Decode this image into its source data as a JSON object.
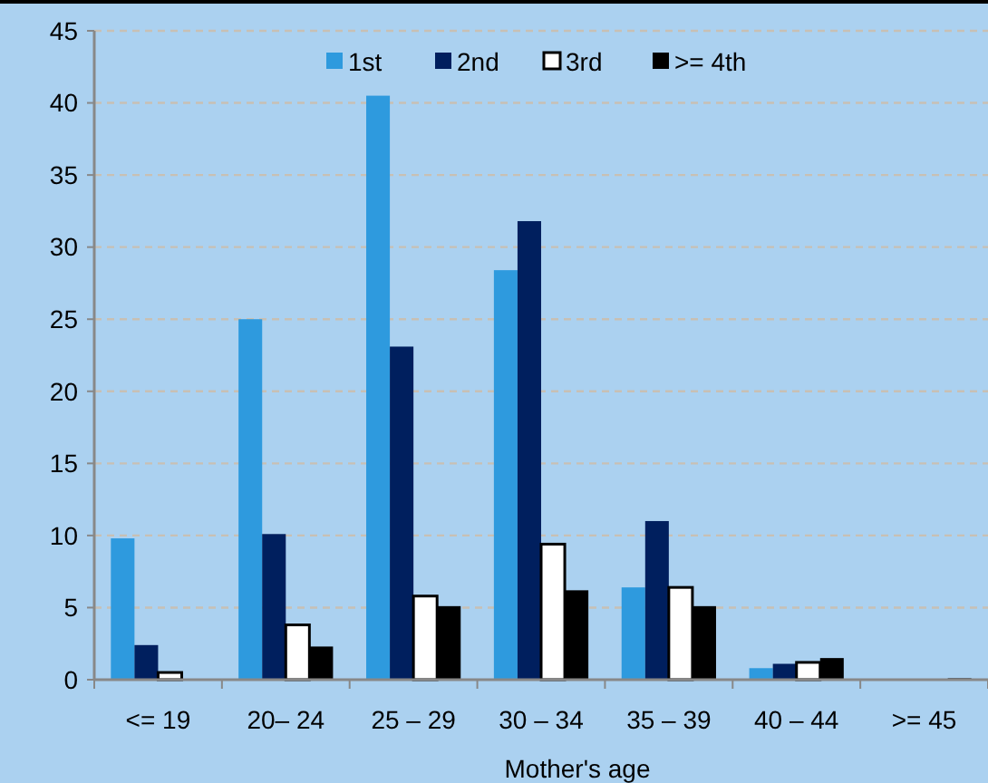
{
  "chart_data": {
    "type": "bar",
    "xlabel": "Mother's age",
    "categories": [
      "<= 19",
      "20– 24",
      "25 – 29",
      "30 – 34",
      "35 – 39",
      "40 – 44",
      ">= 45"
    ],
    "series": [
      {
        "name": "1st",
        "color": "#2e9ade",
        "values": [
          9.8,
          25,
          40.5,
          28.4,
          6.4,
          0.8,
          0
        ]
      },
      {
        "name": "2nd",
        "color": "#001f5e",
        "values": [
          2.4,
          10.1,
          23.1,
          31.8,
          11.0,
          1.1,
          0
        ]
      },
      {
        "name": "3rd",
        "color": "#ffffff",
        "values": [
          0.5,
          3.8,
          5.8,
          9.4,
          6.4,
          1.2,
          null
        ]
      },
      {
        "name": ">= 4th",
        "color": "#000000",
        "values": [
          0,
          2.3,
          5.1,
          6.2,
          5.1,
          1.5,
          0.1
        ]
      }
    ],
    "ylim": [
      0,
      45
    ],
    "yticks": [
      0,
      5,
      10,
      15,
      20,
      25,
      30,
      35,
      40,
      45
    ],
    "grid": "y",
    "legend": "top"
  }
}
